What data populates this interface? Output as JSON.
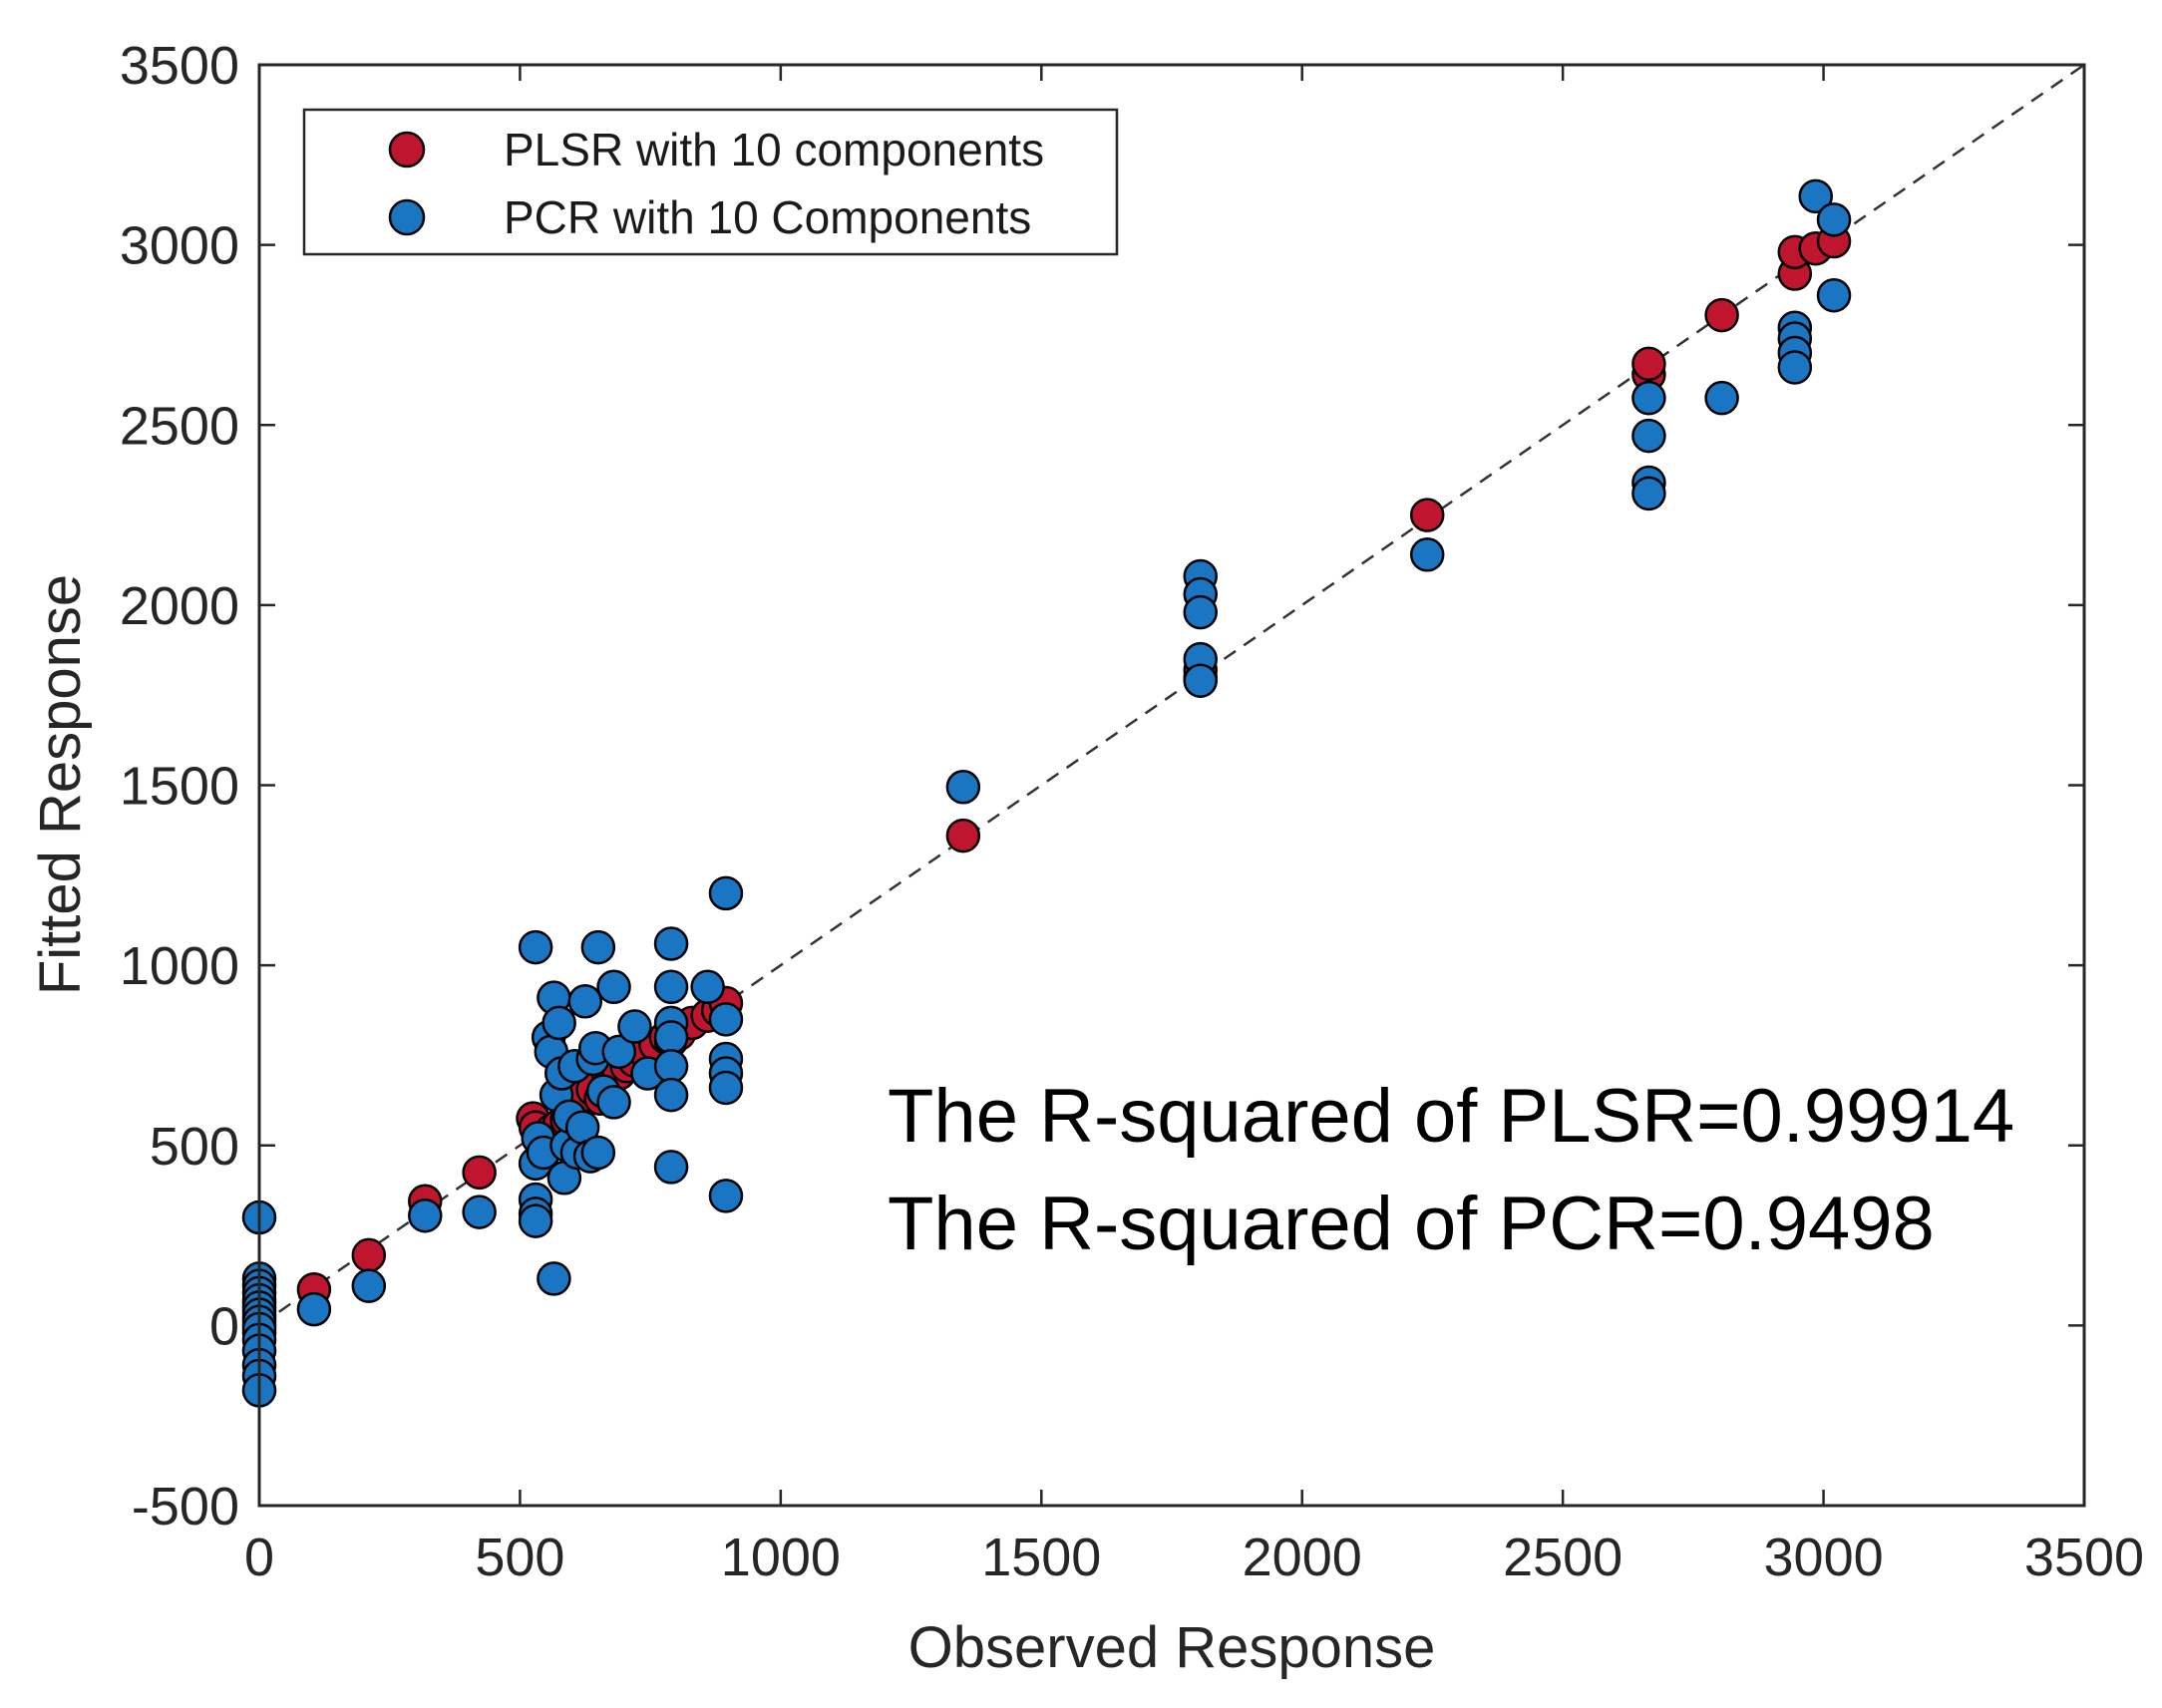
{
  "chart_data": {
    "type": "scatter",
    "title": "",
    "xlabel": "Observed Response",
    "ylabel": "Fitted Response",
    "xlim": [
      0,
      3500
    ],
    "ylim": [
      -500,
      3500
    ],
    "xticks": [
      0,
      500,
      1000,
      1500,
      2000,
      2500,
      3000,
      3500
    ],
    "yticks": [
      -500,
      0,
      500,
      1000,
      1500,
      2000,
      2500,
      3000,
      3500
    ],
    "grid": false,
    "legend_position": "top-left",
    "reference_line": {
      "style": "dashed",
      "from": [
        0,
        0
      ],
      "to": [
        3500,
        3500
      ]
    },
    "annotations": [
      "The R-squared of PLSR=0.99914",
      "The R-squared of PCR=0.9498"
    ],
    "series": [
      {
        "name": "PLSR with 10 components",
        "color": "#c0152f",
        "points": [
          [
            0,
            0
          ],
          [
            0,
            20
          ],
          [
            0,
            40
          ],
          [
            0,
            -20
          ],
          [
            0,
            60
          ],
          [
            105,
            100
          ],
          [
            210,
            195
          ],
          [
            318,
            345
          ],
          [
            422,
            425
          ],
          [
            525,
            575
          ],
          [
            530,
            550
          ],
          [
            545,
            520
          ],
          [
            560,
            540
          ],
          [
            575,
            555
          ],
          [
            590,
            570
          ],
          [
            600,
            585
          ],
          [
            612,
            600
          ],
          [
            625,
            640
          ],
          [
            640,
            655
          ],
          [
            655,
            630
          ],
          [
            670,
            690
          ],
          [
            690,
            700
          ],
          [
            705,
            720
          ],
          [
            720,
            735
          ],
          [
            740,
            760
          ],
          [
            760,
            780
          ],
          [
            780,
            800
          ],
          [
            790,
            790
          ],
          [
            805,
            810
          ],
          [
            830,
            840
          ],
          [
            860,
            860
          ],
          [
            880,
            875
          ],
          [
            895,
            895
          ],
          [
            1350,
            1360
          ],
          [
            1805,
            1800
          ],
          [
            1805,
            1820
          ],
          [
            2240,
            2250
          ],
          [
            2665,
            2640
          ],
          [
            2665,
            2670
          ],
          [
            2805,
            2805
          ],
          [
            2945,
            2920
          ],
          [
            2945,
            2980
          ],
          [
            2985,
            2990
          ],
          [
            3020,
            3010
          ]
        ]
      },
      {
        "name": "PCR with 10 Components",
        "color": "#1a76c2",
        "points": [
          [
            0,
            300
          ],
          [
            0,
            130
          ],
          [
            0,
            110
          ],
          [
            0,
            90
          ],
          [
            0,
            70
          ],
          [
            0,
            50
          ],
          [
            0,
            30
          ],
          [
            0,
            10
          ],
          [
            0,
            -10
          ],
          [
            0,
            -40
          ],
          [
            0,
            -70
          ],
          [
            0,
            -110
          ],
          [
            0,
            -140
          ],
          [
            0,
            -180
          ],
          [
            105,
            45
          ],
          [
            210,
            110
          ],
          [
            318,
            305
          ],
          [
            422,
            315
          ],
          [
            530,
            1050
          ],
          [
            530,
            350
          ],
          [
            530,
            310
          ],
          [
            530,
            290
          ],
          [
            530,
            450
          ],
          [
            535,
            520
          ],
          [
            545,
            480
          ],
          [
            555,
            800
          ],
          [
            560,
            760
          ],
          [
            565,
            910
          ],
          [
            565,
            130
          ],
          [
            570,
            640
          ],
          [
            575,
            840
          ],
          [
            580,
            700
          ],
          [
            585,
            410
          ],
          [
            590,
            500
          ],
          [
            595,
            580
          ],
          [
            605,
            720
          ],
          [
            610,
            480
          ],
          [
            620,
            550
          ],
          [
            625,
            900
          ],
          [
            635,
            470
          ],
          [
            640,
            740
          ],
          [
            645,
            770
          ],
          [
            650,
            1050
          ],
          [
            650,
            480
          ],
          [
            660,
            650
          ],
          [
            680,
            940
          ],
          [
            680,
            620
          ],
          [
            690,
            760
          ],
          [
            720,
            830
          ],
          [
            745,
            700
          ],
          [
            790,
            1060
          ],
          [
            790,
            940
          ],
          [
            790,
            840
          ],
          [
            790,
            800
          ],
          [
            790,
            720
          ],
          [
            790,
            640
          ],
          [
            790,
            440
          ],
          [
            860,
            940
          ],
          [
            895,
            1200
          ],
          [
            895,
            850
          ],
          [
            895,
            740
          ],
          [
            895,
            700
          ],
          [
            895,
            660
          ],
          [
            895,
            360
          ],
          [
            1350,
            1495
          ],
          [
            1805,
            2080
          ],
          [
            1805,
            2030
          ],
          [
            1805,
            1980
          ],
          [
            1805,
            1850
          ],
          [
            1805,
            1790
          ],
          [
            2240,
            2140
          ],
          [
            2665,
            2575
          ],
          [
            2665,
            2470
          ],
          [
            2665,
            2340
          ],
          [
            2665,
            2310
          ],
          [
            2805,
            2575
          ],
          [
            2945,
            2770
          ],
          [
            2945,
            2740
          ],
          [
            2945,
            2700
          ],
          [
            2945,
            2660
          ],
          [
            2985,
            3135
          ],
          [
            3020,
            3070
          ],
          [
            3020,
            2860
          ]
        ]
      }
    ]
  }
}
